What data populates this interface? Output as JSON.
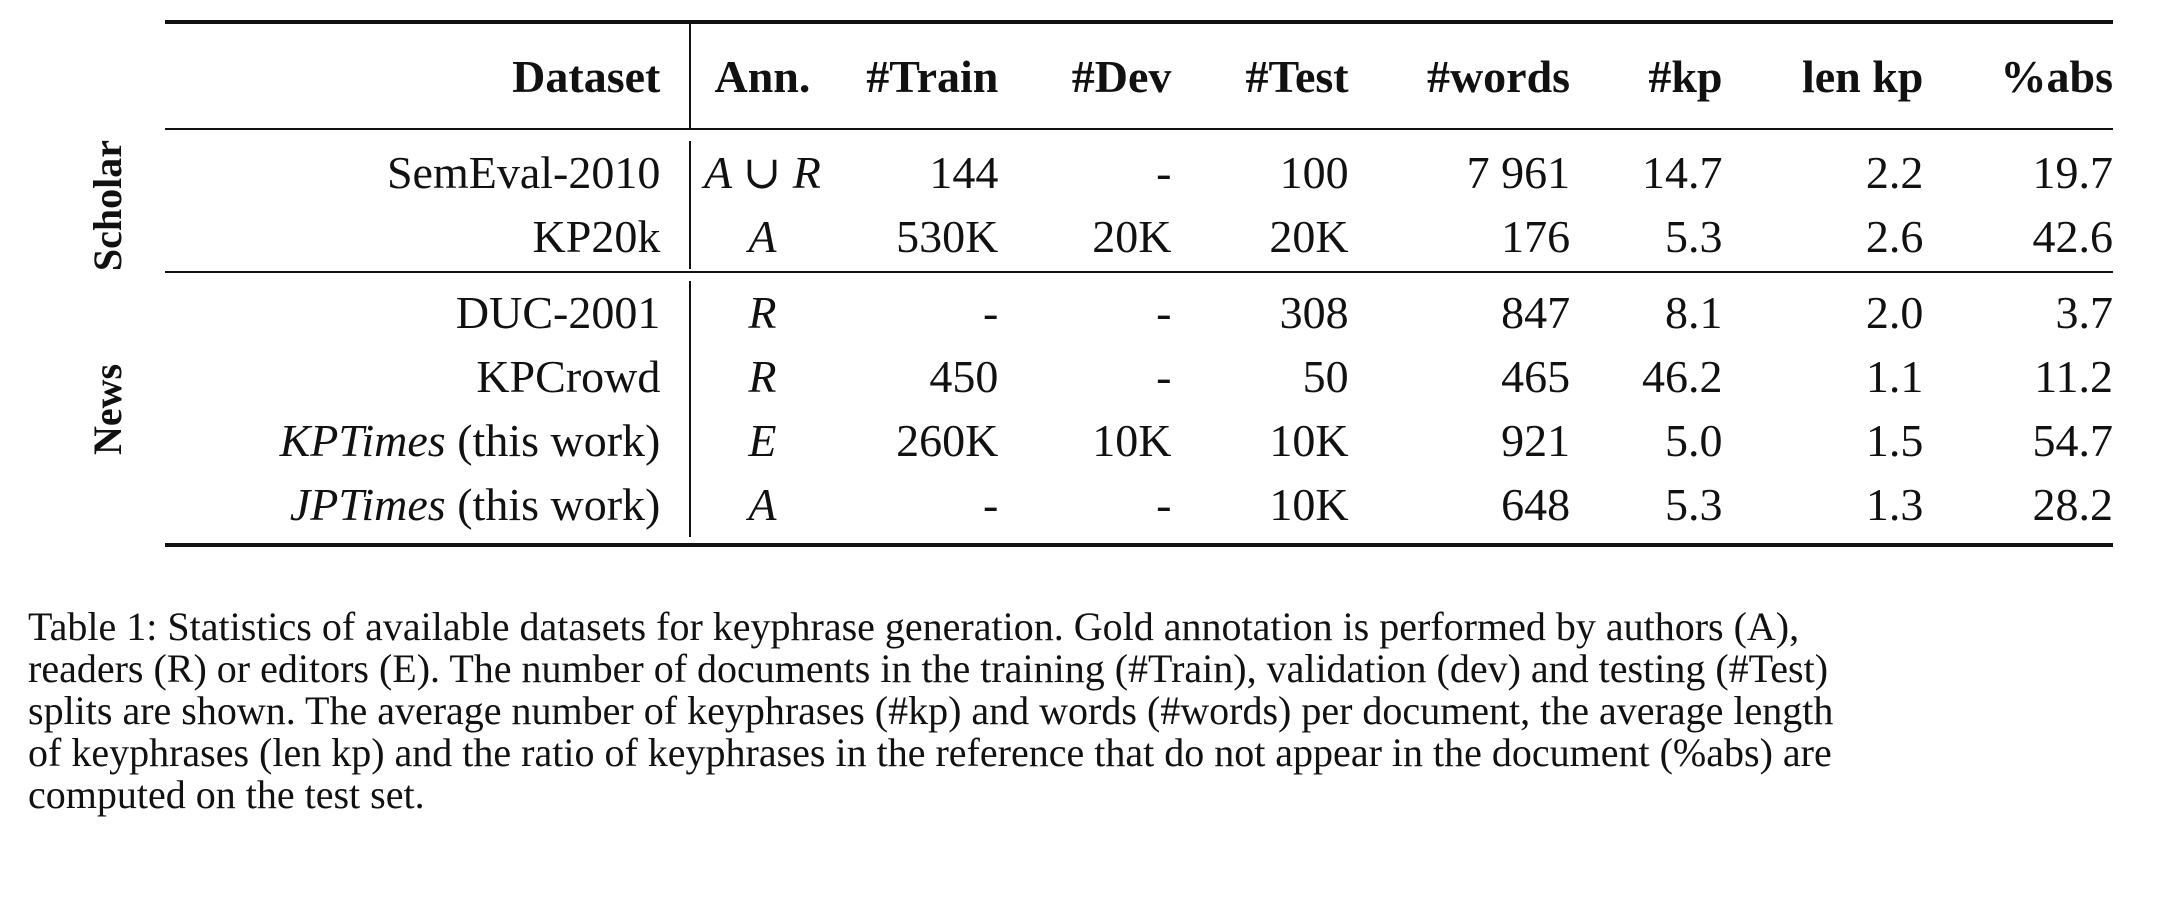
{
  "table": {
    "headers": {
      "dataset": "Dataset",
      "ann": "Ann.",
      "train": "#Train",
      "dev": "#Dev",
      "test": "#Test",
      "words": "#words",
      "kp": "#kp",
      "len_kp": "len kp",
      "abs": "%abs"
    },
    "groups": [
      {
        "label": "Scholar",
        "rows": [
          {
            "dataset_main": "SemEval-2010",
            "dataset_suffix": "",
            "dataset_italic": false,
            "ann": "A ∪ R",
            "train": "144",
            "dev": "-",
            "test": "100",
            "words": "7 961",
            "kp": "14.7",
            "len_kp": "2.2",
            "abs": "19.7"
          },
          {
            "dataset_main": "KP20k",
            "dataset_suffix": "",
            "dataset_italic": false,
            "ann": "A",
            "train": "530K",
            "dev": "20K",
            "test": "20K",
            "words": "176",
            "kp": "5.3",
            "len_kp": "2.6",
            "abs": "42.6"
          }
        ]
      },
      {
        "label": "News",
        "rows": [
          {
            "dataset_main": "DUC-2001",
            "dataset_suffix": "",
            "dataset_italic": false,
            "ann": "R",
            "train": "-",
            "dev": "-",
            "test": "308",
            "words": "847",
            "kp": "8.1",
            "len_kp": "2.0",
            "abs": "3.7"
          },
          {
            "dataset_main": "KPCrowd",
            "dataset_suffix": "",
            "dataset_italic": false,
            "ann": "R",
            "train": "450",
            "dev": "-",
            "test": "50",
            "words": "465",
            "kp": "46.2",
            "len_kp": "1.1",
            "abs": "11.2"
          },
          {
            "dataset_main": "KPTimes",
            "dataset_suffix": " (this work)",
            "dataset_italic": true,
            "ann": "E",
            "train": "260K",
            "dev": "10K",
            "test": "10K",
            "words": "921",
            "kp": "5.0",
            "len_kp": "1.5",
            "abs": "54.7"
          },
          {
            "dataset_main": "JPTimes",
            "dataset_suffix": " (this work)",
            "dataset_italic": true,
            "ann": "A",
            "train": "-",
            "dev": "-",
            "test": "10K",
            "words": "648",
            "kp": "5.3",
            "len_kp": "1.3",
            "abs": "28.2"
          }
        ]
      }
    ]
  },
  "caption": {
    "lines": [
      "Table 1: Statistics of available datasets for keyphrase generation. Gold annotation is performed by authors (A),",
      "readers (R) or editors (E). The number of documents in the training (#Train), validation (dev) and testing (#Test)",
      "splits are shown. The average number of keyphrases (#kp) and words (#words) per document, the average length",
      "of keyphrases (len kp) and the ratio of keyphrases in the reference that do not appear in the document (%abs) are",
      "computed on the test set."
    ]
  }
}
